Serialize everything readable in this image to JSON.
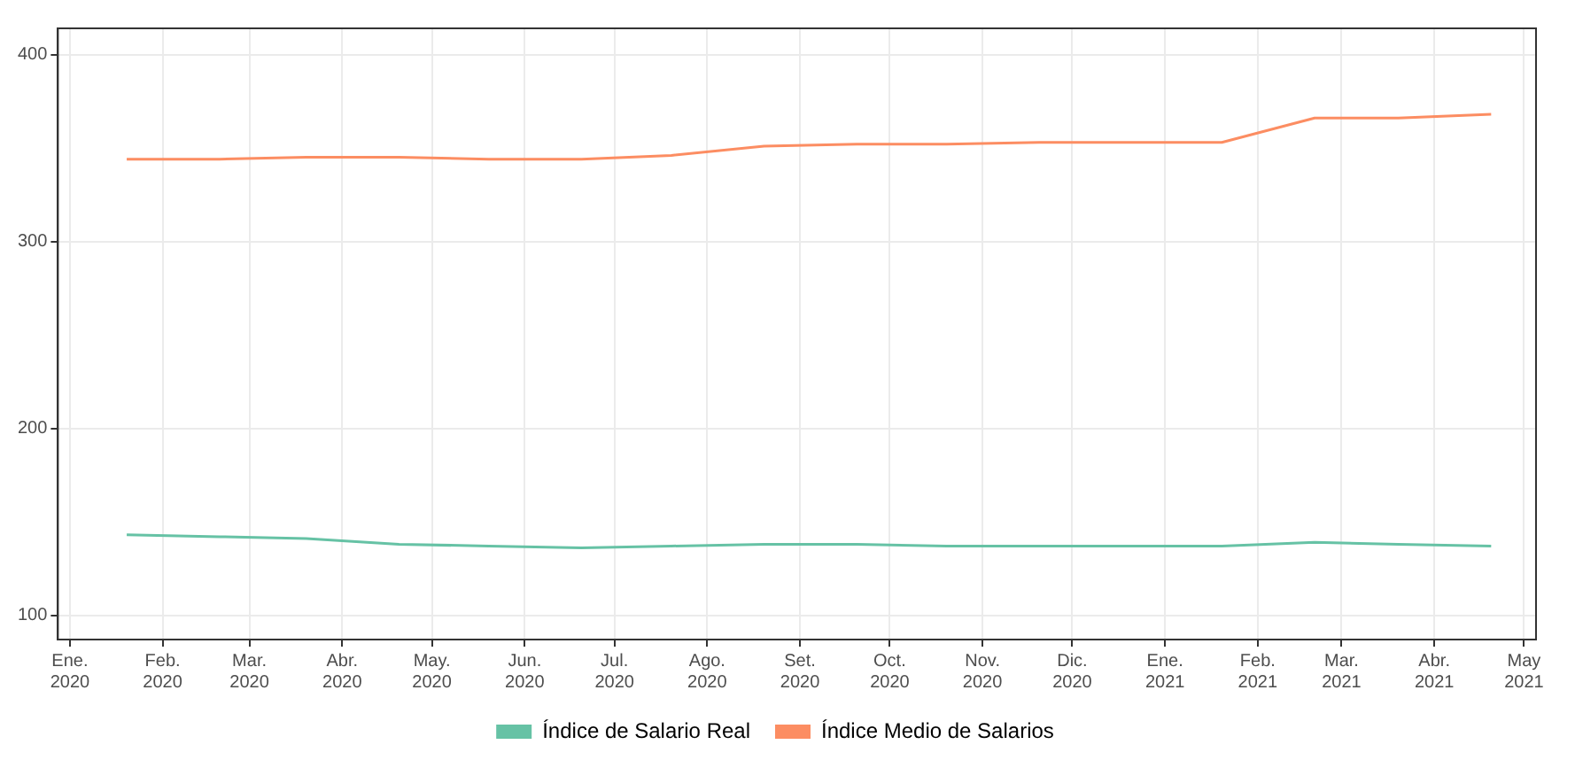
{
  "chart_data": {
    "type": "line",
    "x": [
      "2020-01-20",
      "2020-02-20",
      "2020-03-20",
      "2020-04-20",
      "2020-05-20",
      "2020-06-20",
      "2020-07-20",
      "2020-08-20",
      "2020-09-20",
      "2020-10-20",
      "2020-11-20",
      "2020-12-20",
      "2021-01-20",
      "2021-02-20",
      "2021-03-20",
      "2021-04-20"
    ],
    "series": [
      {
        "name": "Índice de Salario Real",
        "color": "#66c2a5",
        "values": [
          143,
          142,
          141,
          138,
          137,
          136,
          137,
          138,
          138,
          137,
          137,
          137,
          137,
          139,
          138,
          137
        ]
      },
      {
        "name": "Índice Medio de Salarios",
        "color": "#fc8d62",
        "values": [
          344,
          344,
          345,
          345,
          344,
          344,
          346,
          351,
          352,
          352,
          353,
          353,
          353,
          366,
          366,
          368
        ]
      }
    ],
    "xlim": [
      "2019-12-28",
      "2021-05-05"
    ],
    "xticks": [
      {
        "value": "2020-01-01",
        "label": "Ene. 2020"
      },
      {
        "value": "2020-02-01",
        "label": "Feb. 2020"
      },
      {
        "value": "2020-03-01",
        "label": "Mar. 2020"
      },
      {
        "value": "2020-04-01",
        "label": "Abr. 2020"
      },
      {
        "value": "2020-05-01",
        "label": "May. 2020"
      },
      {
        "value": "2020-06-01",
        "label": "Jun. 2020"
      },
      {
        "value": "2020-07-01",
        "label": "Jul. 2020"
      },
      {
        "value": "2020-08-01",
        "label": "Ago. 2020"
      },
      {
        "value": "2020-09-01",
        "label": "Set. 2020"
      },
      {
        "value": "2020-10-01",
        "label": "Oct. 2020"
      },
      {
        "value": "2020-11-01",
        "label": "Nov. 2020"
      },
      {
        "value": "2020-12-01",
        "label": "Dic. 2020"
      },
      {
        "value": "2021-01-01",
        "label": "Ene. 2021"
      },
      {
        "value": "2021-02-01",
        "label": "Feb. 2021"
      },
      {
        "value": "2021-03-01",
        "label": "Mar. 2021"
      },
      {
        "value": "2021-04-01",
        "label": "Abr. 2021"
      },
      {
        "value": "2021-05-01",
        "label": "May 2021"
      }
    ],
    "ylim": [
      87,
      414
    ],
    "yticks": [
      100,
      200,
      300,
      400
    ],
    "grid": true,
    "legend": "bottom",
    "marker": "none",
    "line_style": "solid"
  }
}
